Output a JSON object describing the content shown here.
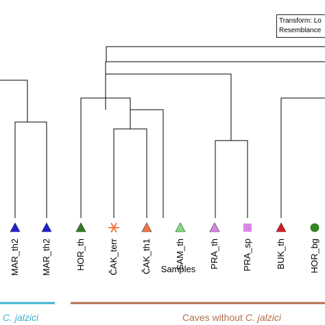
{
  "legend": {
    "line1": "Transform: Lo",
    "line2": "Resemblance"
  },
  "axis": {
    "xlabel": "Samples"
  },
  "leaves": [
    {
      "label": "MAR_th2",
      "marker": "triangle",
      "color": "#1f1fd6"
    },
    {
      "label": "MAR_th2",
      "marker": "triangle",
      "color": "#1f1fd6"
    },
    {
      "label": "HOR_th",
      "marker": "triangle",
      "color": "#2f7d1e"
    },
    {
      "label": "ČAK_terr",
      "marker": "asterisk",
      "color": "#f07845"
    },
    {
      "label": "ČAK_th1",
      "marker": "triangle",
      "color": "#f07845"
    },
    {
      "label": "SAM_th",
      "marker": "triangle",
      "color": "#7de07a"
    },
    {
      "label": "PRA_th",
      "marker": "triangle",
      "color": "#d987e8"
    },
    {
      "label": "PRA_sp",
      "marker": "square",
      "color": "#d987e8"
    },
    {
      "label": "BUK_th",
      "marker": "triangle",
      "color": "#d81c24"
    },
    {
      "label": "HOR_bg",
      "marker": "circle",
      "color": "#2e8a1f"
    }
  ],
  "groups": {
    "left": {
      "prefix": "",
      "italic": "C. jalzici",
      "color": "#3ab3d0"
    },
    "right": {
      "prefix": "Caves without ",
      "italic": "C. jalzici",
      "color": "#b26e4a"
    }
  }
}
